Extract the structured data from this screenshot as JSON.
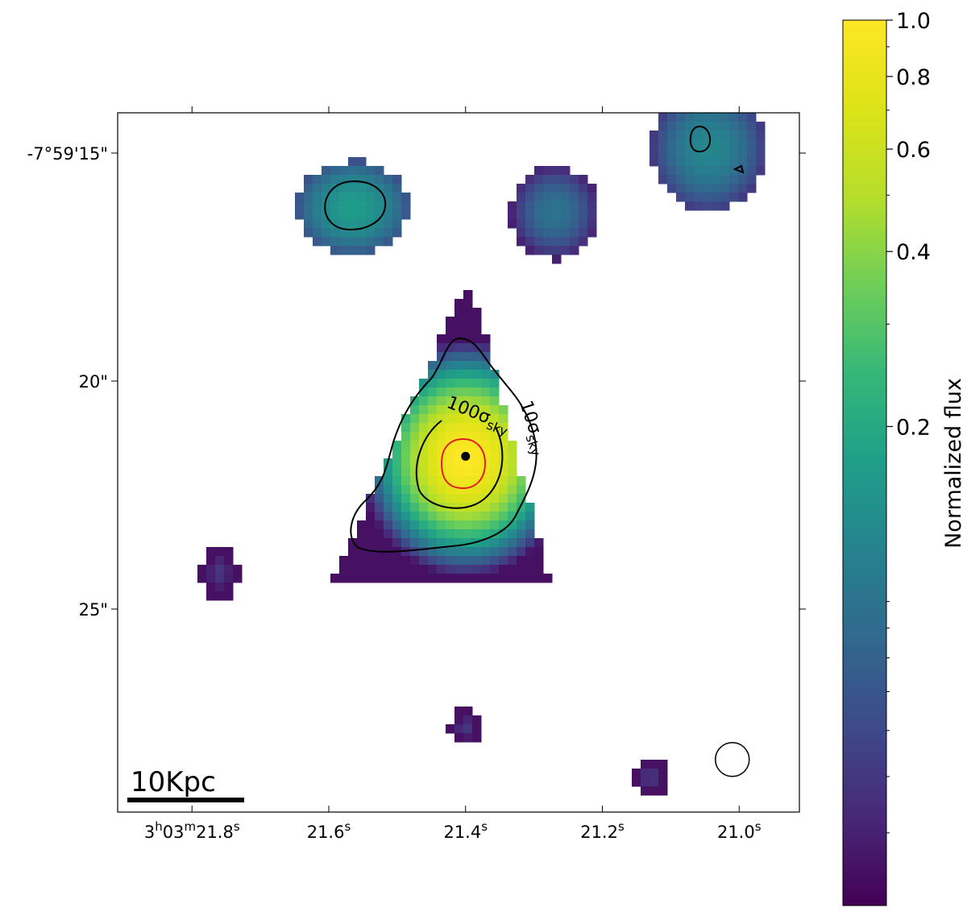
{
  "chart_data": {
    "type": "heatmap",
    "title": "",
    "xlabel": "",
    "ylabel": "",
    "colormap": "viridis",
    "colorbar": {
      "label": "Normalized flux",
      "scale": "log",
      "ticks": [
        "1.0",
        "0.8",
        "0.6",
        "0.4",
        "0.2"
      ],
      "tick_values": [
        1.0,
        0.8,
        0.6,
        0.4,
        0.2
      ],
      "range": [
        0.03,
        1.0
      ]
    },
    "x_ticks": [
      {
        "h": "3",
        "m": "03",
        "s": "21.8",
        "full": true
      },
      {
        "s": "21.6",
        "full": false
      },
      {
        "s": "21.4",
        "full": false
      },
      {
        "s": "21.2",
        "full": false
      },
      {
        "s": "21.0",
        "full": false
      }
    ],
    "y_ticks": [
      "-7°59'15\"",
      "20\"",
      "25\""
    ],
    "scale_bar": "10Kpc",
    "contour_labels": [
      {
        "sigma": "100",
        "sub": "sky"
      },
      {
        "sigma": "10",
        "sub": "sky"
      }
    ],
    "sources": [
      {
        "name": "main",
        "ra_s": 21.4,
        "dec_offset": 21.7,
        "peak": 1.0,
        "sx": 0.9,
        "sy": 1.0
      },
      {
        "name": "upper-left",
        "ra_s": 21.565,
        "dec_offset": 16.2,
        "peak": 0.17,
        "sx": 0.9,
        "sy": 0.75
      },
      {
        "name": "upper-middle",
        "ra_s": 21.27,
        "dec_offset": 16.3,
        "peak": 0.1,
        "sx": 0.7,
        "sy": 0.75
      },
      {
        "name": "upper-right",
        "ra_s": 21.045,
        "dec_offset": 14.9,
        "peak": 0.13,
        "sx": 0.9,
        "sy": 1.0
      },
      {
        "name": "lower-left-blob",
        "ra_s": 21.76,
        "dec_offset": 24.2,
        "peak": 0.05,
        "sx": 0.3,
        "sy": 0.45
      },
      {
        "name": "bottom-blob",
        "ra_s": 21.4,
        "dec_offset": 27.6,
        "peak": 0.05,
        "sx": 0.25,
        "sy": 0.3
      },
      {
        "name": "bottom-right-blob",
        "ra_s": 21.13,
        "dec_offset": 28.7,
        "peak": 0.05,
        "sx": 0.3,
        "sy": 0.3
      }
    ],
    "nucleus": {
      "ra_s": 21.4,
      "dec_offset": 21.65
    },
    "beam": {
      "ra_s": 21.01,
      "dec_offset": 28.3
    }
  }
}
